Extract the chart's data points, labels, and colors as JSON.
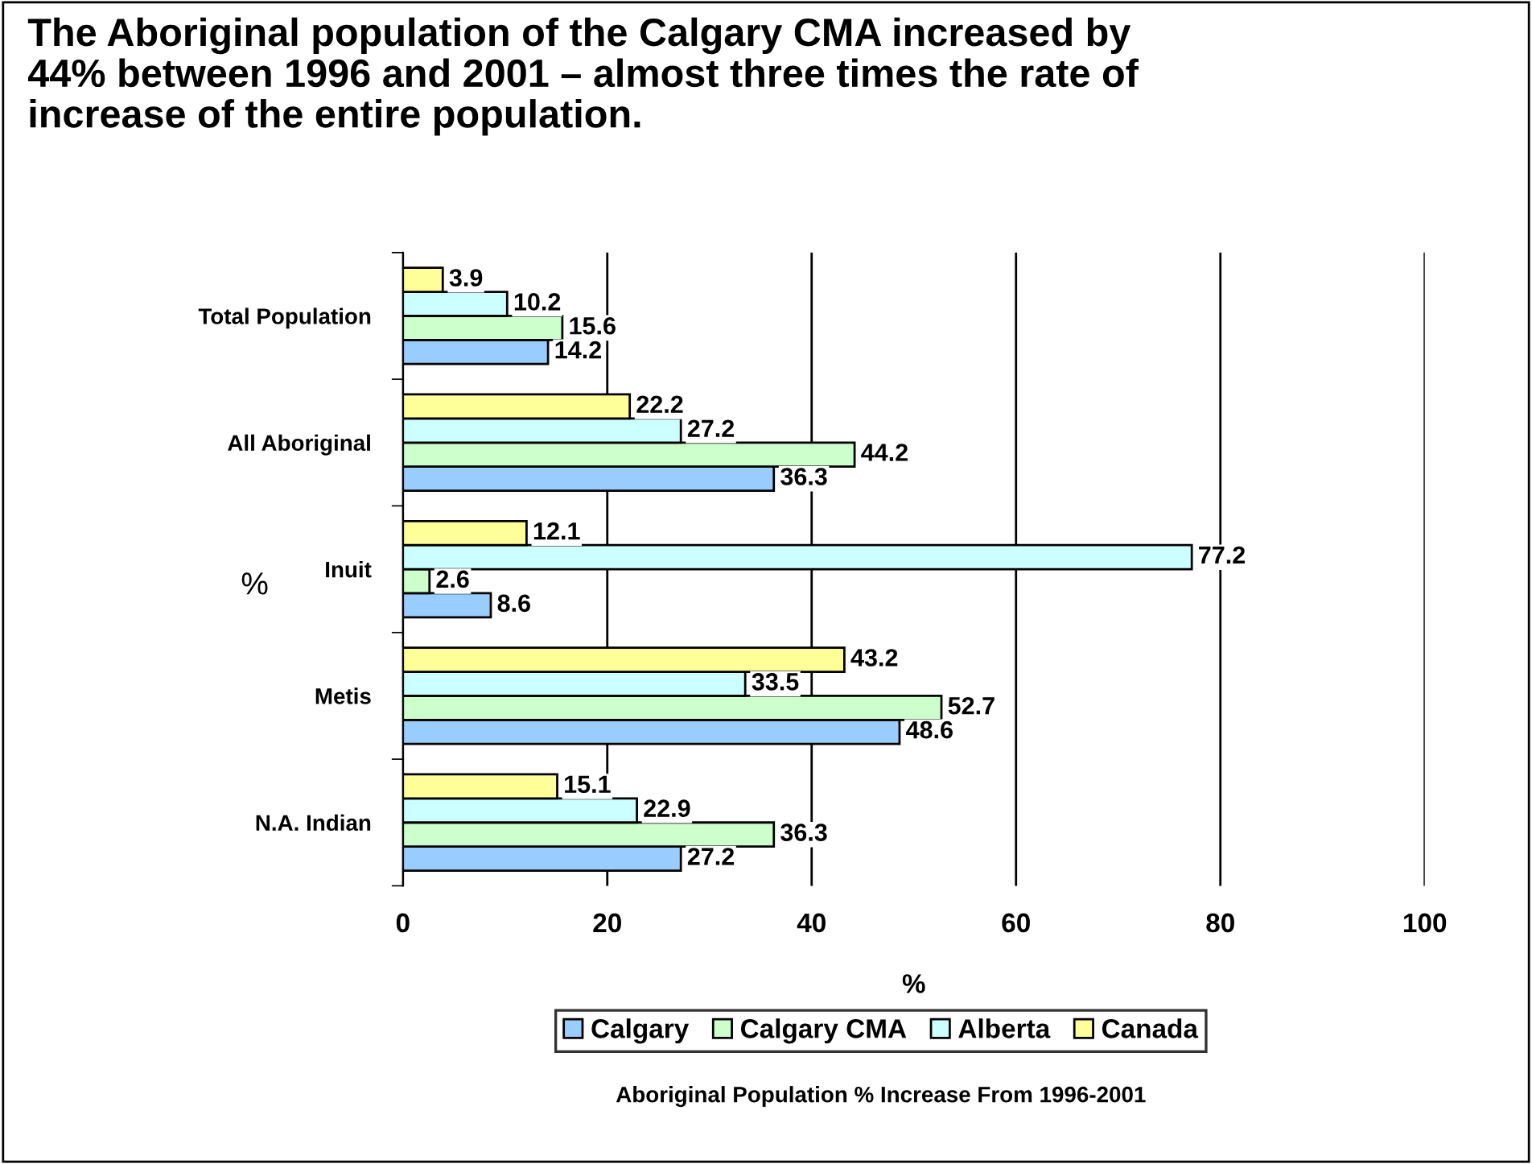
{
  "chart_data": {
    "type": "bar",
    "orientation": "horizontal",
    "title": "The Aboriginal population of the Calgary CMA increased by\n44% between 1996 and 2001 – almost three times the rate of\nincrease of the entire population.",
    "xlabel": "%",
    "ylabel": "%",
    "categories": [
      "Total Population",
      "All Aboriginal",
      "Inuit",
      "Metis",
      "N.A. Indian"
    ],
    "series": [
      {
        "name": "Calgary",
        "color": "#99ccff",
        "values": [
          14.2,
          36.3,
          8.6,
          48.6,
          27.2
        ]
      },
      {
        "name": "Calgary CMA",
        "color": "#ccffcc",
        "values": [
          15.6,
          44.2,
          2.6,
          52.7,
          36.3
        ]
      },
      {
        "name": "Alberta",
        "color": "#ccffff",
        "values": [
          10.2,
          27.2,
          77.2,
          33.5,
          22.9
        ]
      },
      {
        "name": "Canada",
        "color": "#ffff99",
        "values": [
          3.9,
          22.2,
          12.1,
          43.2,
          15.1
        ]
      }
    ],
    "xlim": [
      0,
      100
    ],
    "xticks": [
      0,
      20,
      40,
      60,
      80,
      100
    ],
    "grid": "x",
    "legend": "bottom",
    "data_labels": true,
    "annotations": [
      "Aboriginal Population % Increase From 1996-2001"
    ]
  }
}
